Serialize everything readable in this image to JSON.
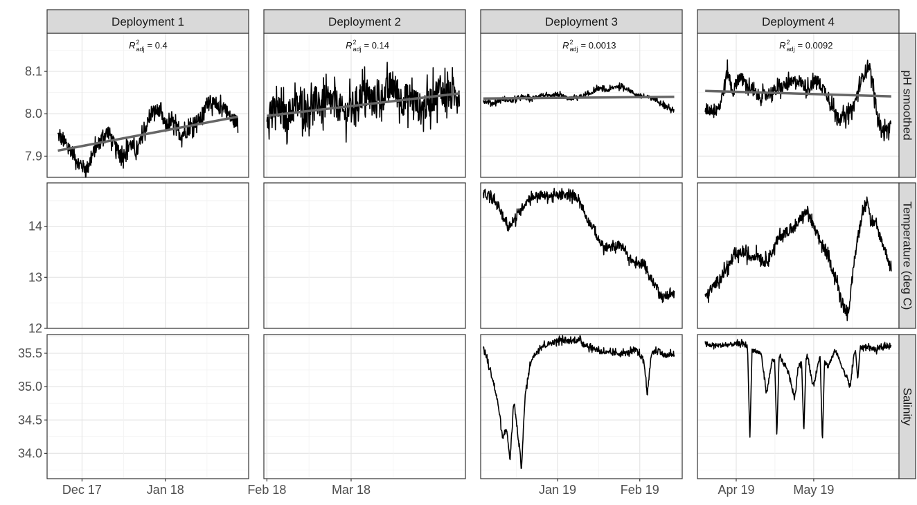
{
  "chart_data": {
    "type": "line",
    "facet_columns": [
      "Deployment 1",
      "Deployment 2",
      "Deployment 3",
      "Deployment 4"
    ],
    "facet_rows": [
      "pH smoothed",
      "Temperature (deg C)",
      "Salinity"
    ],
    "grid": true,
    "ylim": {
      "pH smoothed": [
        7.85,
        8.19
      ],
      "Temperature (deg C)": [
        12.0,
        14.85
      ],
      "Salinity": [
        33.62,
        35.78
      ]
    },
    "y_ticks": {
      "pH smoothed": [
        "7.9",
        "8.0",
        "8.1"
      ],
      "Temperature (deg C)": [
        "12",
        "13",
        "14"
      ],
      "Salinity": [
        "34.0",
        "34.5",
        "35.0",
        "35.5"
      ]
    },
    "x_ticks": [
      [
        "Dec 17",
        "Jan 18"
      ],
      [
        "Feb 18",
        "Mar 18"
      ],
      [
        "Jan 19",
        "Feb 19"
      ],
      [
        "Apr 19",
        "May 19"
      ]
    ],
    "x_ranges": [
      [
        "2017-11-18",
        "2018-02-01"
      ],
      [
        "2018-01-31",
        "2018-04-08"
      ],
      [
        "2018-12-03",
        "2019-02-17"
      ],
      [
        "2019-03-17",
        "2019-06-03"
      ]
    ],
    "fit_annotations": [
      "= 0.4",
      "= 0.14",
      "= 0.0013",
      "= 0.0092"
    ],
    "fit_symbol": "R",
    "fit_sup": "2",
    "fit_sub": "adj",
    "fit_color": "#666666",
    "line_color": "#000000",
    "series": [
      {
        "facet_column": "Deployment 1",
        "facet_row": "pH smoothed",
        "start": "2017-11-22",
        "end": "2018-01-28",
        "points": [
          [
            0,
            7.95
          ],
          [
            0.04,
            7.93
          ],
          [
            0.08,
            7.91
          ],
          [
            0.12,
            7.88
          ],
          [
            0.16,
            7.87
          ],
          [
            0.2,
            7.91
          ],
          [
            0.24,
            7.94
          ],
          [
            0.28,
            7.96
          ],
          [
            0.32,
            7.92
          ],
          [
            0.36,
            7.9
          ],
          [
            0.4,
            7.93
          ],
          [
            0.44,
            7.91
          ],
          [
            0.48,
            7.96
          ],
          [
            0.52,
            8.0
          ],
          [
            0.56,
            8.01
          ],
          [
            0.6,
            7.97
          ],
          [
            0.64,
            7.98
          ],
          [
            0.68,
            7.95
          ],
          [
            0.72,
            7.96
          ],
          [
            0.76,
            7.98
          ],
          [
            0.8,
            7.99
          ],
          [
            0.84,
            8.04
          ],
          [
            0.88,
            8.01
          ],
          [
            0.92,
            8.02
          ],
          [
            0.96,
            7.99
          ],
          [
            1,
            7.98
          ]
        ],
        "noise": 0.02,
        "fit": [
          7.913,
          7.993
        ]
      },
      {
        "facet_column": "Deployment 2",
        "facet_row": "pH smoothed",
        "start": "2018-02-01",
        "end": "2018-04-06",
        "points": [
          [
            0,
            8.0
          ],
          [
            0.05,
            8.01
          ],
          [
            0.1,
            7.99
          ],
          [
            0.15,
            8.02
          ],
          [
            0.2,
            8.01
          ],
          [
            0.25,
            8.03
          ],
          [
            0.3,
            8.02
          ],
          [
            0.35,
            8.03
          ],
          [
            0.4,
            8.0
          ],
          [
            0.45,
            8.02
          ],
          [
            0.5,
            8.05
          ],
          [
            0.55,
            8.03
          ],
          [
            0.6,
            8.04
          ],
          [
            0.65,
            8.07
          ],
          [
            0.7,
            8.03
          ],
          [
            0.75,
            8.04
          ],
          [
            0.8,
            8.01
          ],
          [
            0.85,
            8.03
          ],
          [
            0.9,
            8.06
          ],
          [
            0.95,
            8.04
          ],
          [
            1,
            8.05
          ]
        ],
        "noise": 0.045,
        "fit": [
          7.995,
          8.048
        ]
      },
      {
        "facet_column": "Deployment 3",
        "facet_row": "pH smoothed",
        "start": "2018-12-04",
        "end": "2019-02-14",
        "points": [
          [
            0,
            8.03
          ],
          [
            0.05,
            8.025
          ],
          [
            0.1,
            8.035
          ],
          [
            0.15,
            8.03
          ],
          [
            0.2,
            8.04
          ],
          [
            0.25,
            8.035
          ],
          [
            0.3,
            8.045
          ],
          [
            0.35,
            8.04
          ],
          [
            0.4,
            8.045
          ],
          [
            0.45,
            8.035
          ],
          [
            0.5,
            8.04
          ],
          [
            0.55,
            8.045
          ],
          [
            0.6,
            8.06
          ],
          [
            0.65,
            8.055
          ],
          [
            0.7,
            8.065
          ],
          [
            0.75,
            8.06
          ],
          [
            0.8,
            8.045
          ],
          [
            0.85,
            8.04
          ],
          [
            0.9,
            8.035
          ],
          [
            0.95,
            8.02
          ],
          [
            1,
            8.005
          ]
        ],
        "noise": 0.006,
        "fit": [
          8.036,
          8.04
        ]
      },
      {
        "facet_column": "Deployment 4",
        "facet_row": "pH smoothed",
        "start": "2019-03-20",
        "end": "2019-05-31",
        "points": [
          [
            0,
            8.01
          ],
          [
            0.05,
            8.01
          ],
          [
            0.08,
            8.02
          ],
          [
            0.12,
            8.1
          ],
          [
            0.15,
            8.05
          ],
          [
            0.18,
            8.09
          ],
          [
            0.22,
            8.07
          ],
          [
            0.26,
            8.05
          ],
          [
            0.3,
            8.04
          ],
          [
            0.35,
            8.05
          ],
          [
            0.4,
            8.06
          ],
          [
            0.45,
            8.07
          ],
          [
            0.5,
            8.08
          ],
          [
            0.55,
            8.06
          ],
          [
            0.6,
            8.08
          ],
          [
            0.65,
            8.05
          ],
          [
            0.7,
            8.0
          ],
          [
            0.75,
            7.99
          ],
          [
            0.8,
            8.02
          ],
          [
            0.84,
            8.08
          ],
          [
            0.88,
            8.12
          ],
          [
            0.9,
            8.07
          ],
          [
            0.93,
            7.98
          ],
          [
            0.96,
            7.96
          ],
          [
            1,
            7.97
          ]
        ],
        "noise": 0.018,
        "fit": [
          8.054,
          8.041
        ]
      },
      {
        "facet_column": "Deployment 3",
        "facet_row": "Temperature (deg C)",
        "start": "2018-12-04",
        "end": "2019-02-14",
        "points": [
          [
            0,
            14.65
          ],
          [
            0.04,
            14.55
          ],
          [
            0.08,
            14.4
          ],
          [
            0.1,
            14.2
          ],
          [
            0.13,
            14.0
          ],
          [
            0.17,
            14.15
          ],
          [
            0.2,
            14.35
          ],
          [
            0.24,
            14.55
          ],
          [
            0.28,
            14.6
          ],
          [
            0.35,
            14.6
          ],
          [
            0.42,
            14.6
          ],
          [
            0.47,
            14.6
          ],
          [
            0.5,
            14.55
          ],
          [
            0.52,
            14.35
          ],
          [
            0.55,
            14.1
          ],
          [
            0.58,
            13.95
          ],
          [
            0.6,
            13.75
          ],
          [
            0.64,
            13.55
          ],
          [
            0.68,
            13.6
          ],
          [
            0.72,
            13.65
          ],
          [
            0.76,
            13.4
          ],
          [
            0.8,
            13.25
          ],
          [
            0.84,
            13.3
          ],
          [
            0.87,
            13.0
          ],
          [
            0.91,
            12.8
          ],
          [
            0.94,
            12.6
          ],
          [
            0.97,
            12.65
          ],
          [
            1,
            12.7
          ]
        ],
        "noise": 0.1
      },
      {
        "facet_column": "Deployment 4",
        "facet_row": "Temperature (deg C)",
        "start": "2019-03-20",
        "end": "2019-05-31",
        "points": [
          [
            0,
            12.6
          ],
          [
            0.04,
            12.8
          ],
          [
            0.08,
            13.0
          ],
          [
            0.12,
            13.2
          ],
          [
            0.16,
            13.4
          ],
          [
            0.2,
            13.5
          ],
          [
            0.24,
            13.4
          ],
          [
            0.28,
            13.45
          ],
          [
            0.32,
            13.3
          ],
          [
            0.36,
            13.5
          ],
          [
            0.4,
            13.8
          ],
          [
            0.44,
            13.9
          ],
          [
            0.48,
            13.95
          ],
          [
            0.52,
            14.2
          ],
          [
            0.55,
            14.3
          ],
          [
            0.58,
            14.0
          ],
          [
            0.62,
            13.7
          ],
          [
            0.66,
            13.4
          ],
          [
            0.7,
            13.0
          ],
          [
            0.73,
            12.6
          ],
          [
            0.76,
            12.3
          ],
          [
            0.78,
            12.5
          ],
          [
            0.8,
            13.3
          ],
          [
            0.83,
            14.0
          ],
          [
            0.85,
            14.3
          ],
          [
            0.87,
            14.6
          ],
          [
            0.89,
            14.1
          ],
          [
            0.92,
            14.0
          ],
          [
            0.95,
            13.7
          ],
          [
            0.98,
            13.4
          ],
          [
            1,
            13.1
          ]
        ],
        "noise": 0.12
      },
      {
        "facet_column": "Deployment 3",
        "facet_row": "Salinity",
        "start": "2018-12-04",
        "end": "2019-02-14",
        "points": [
          [
            0,
            35.6
          ],
          [
            0.02,
            35.4
          ],
          [
            0.05,
            35.1
          ],
          [
            0.08,
            34.7
          ],
          [
            0.1,
            34.2
          ],
          [
            0.12,
            34.4
          ],
          [
            0.14,
            33.9
          ],
          [
            0.16,
            34.8
          ],
          [
            0.18,
            34.3
          ],
          [
            0.2,
            33.8
          ],
          [
            0.22,
            34.9
          ],
          [
            0.25,
            35.4
          ],
          [
            0.3,
            35.6
          ],
          [
            0.35,
            35.65
          ],
          [
            0.4,
            35.7
          ],
          [
            0.45,
            35.68
          ],
          [
            0.5,
            35.7
          ],
          [
            0.55,
            35.6
          ],
          [
            0.6,
            35.55
          ],
          [
            0.65,
            35.5
          ],
          [
            0.7,
            35.5
          ],
          [
            0.75,
            35.5
          ],
          [
            0.8,
            35.55
          ],
          [
            0.84,
            35.4
          ],
          [
            0.86,
            34.9
          ],
          [
            0.88,
            35.5
          ],
          [
            0.92,
            35.55
          ],
          [
            0.95,
            35.45
          ],
          [
            1,
            35.5
          ]
        ],
        "noise": 0.05
      },
      {
        "facet_column": "Deployment 4",
        "facet_row": "Salinity",
        "start": "2019-03-20",
        "end": "2019-05-31",
        "points": [
          [
            0,
            35.62
          ],
          [
            0.1,
            35.62
          ],
          [
            0.2,
            35.65
          ],
          [
            0.25,
            35.55
          ],
          [
            0.3,
            35.5
          ],
          [
            0.33,
            34.9
          ],
          [
            0.36,
            35.4
          ],
          [
            0.4,
            35.45
          ],
          [
            0.45,
            35.2
          ],
          [
            0.48,
            34.8
          ],
          [
            0.5,
            35.3
          ],
          [
            0.55,
            35.45
          ],
          [
            0.58,
            35.0
          ],
          [
            0.62,
            35.5
          ],
          [
            0.66,
            35.3
          ],
          [
            0.7,
            35.55
          ],
          [
            0.75,
            35.2
          ],
          [
            0.78,
            35.0
          ],
          [
            0.8,
            35.5
          ],
          [
            0.83,
            35.58
          ],
          [
            0.87,
            35.6
          ],
          [
            0.92,
            35.55
          ],
          [
            0.96,
            35.6
          ],
          [
            1,
            35.62
          ]
        ],
        "noise": 0.04,
        "dips": [
          [
            0.24,
            34.2
          ],
          [
            0.385,
            34.25
          ],
          [
            0.53,
            34.3
          ],
          [
            0.63,
            34.15
          ],
          [
            0.82,
            35.1
          ]
        ]
      }
    ]
  }
}
